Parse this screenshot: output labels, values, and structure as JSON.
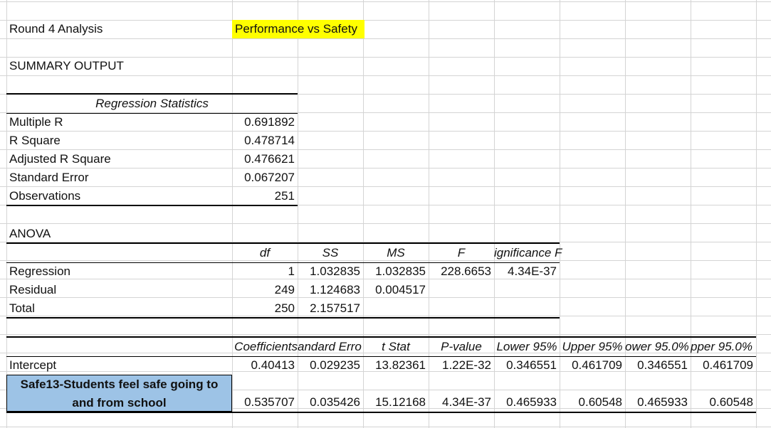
{
  "title": "Round 4 Analysis",
  "subtitle": "Performance vs Safety",
  "summary_output": "SUMMARY OUTPUT",
  "regression_statistics": {
    "header": "Regression Statistics",
    "rows": [
      {
        "label": "Multiple R",
        "value": "0.691892"
      },
      {
        "label": "R Square",
        "value": "0.478714"
      },
      {
        "label": "Adjusted R Square",
        "value": "0.476621"
      },
      {
        "label": "Standard Error",
        "value": "0.067207"
      },
      {
        "label": "Observations",
        "value": "251"
      }
    ]
  },
  "anova": {
    "title": "ANOVA",
    "headers": [
      "df",
      "SS",
      "MS",
      "F",
      "ignificance F"
    ],
    "rows": [
      {
        "label": "Regression",
        "df": "1",
        "ss": "1.032835",
        "ms": "1.032835",
        "f": "228.6653",
        "sig": "4.34E-37"
      },
      {
        "label": "Residual",
        "df": "249",
        "ss": "1.124683",
        "ms": "0.004517",
        "f": "",
        "sig": ""
      },
      {
        "label": "Total",
        "df": "250",
        "ss": "2.157517",
        "ms": "",
        "f": "",
        "sig": ""
      }
    ]
  },
  "coefficients": {
    "headers": [
      "Coefficients",
      "andard Erro",
      "t Stat",
      "P-value",
      "Lower 95%",
      "Upper 95%",
      "ower 95.0%",
      "pper 95.0%"
    ],
    "rows": [
      {
        "label": "Intercept",
        "values": [
          "0.40413",
          "0.029235",
          "13.82361",
          "1.22E-32",
          "0.346551",
          "0.461709",
          "0.346551",
          "0.461709"
        ]
      },
      {
        "label_line1": "Safe13-Students feel safe going to",
        "label_line2": "and from school",
        "values": [
          "0.535707",
          "0.035426",
          "15.12168",
          "4.34E-37",
          "0.465933",
          "0.60548",
          "0.465933",
          "0.60548"
        ]
      }
    ]
  },
  "colors": {
    "highlight": "#ffff00",
    "label_fill": "#9dc3e6",
    "gridline": "#d4d4d4"
  }
}
